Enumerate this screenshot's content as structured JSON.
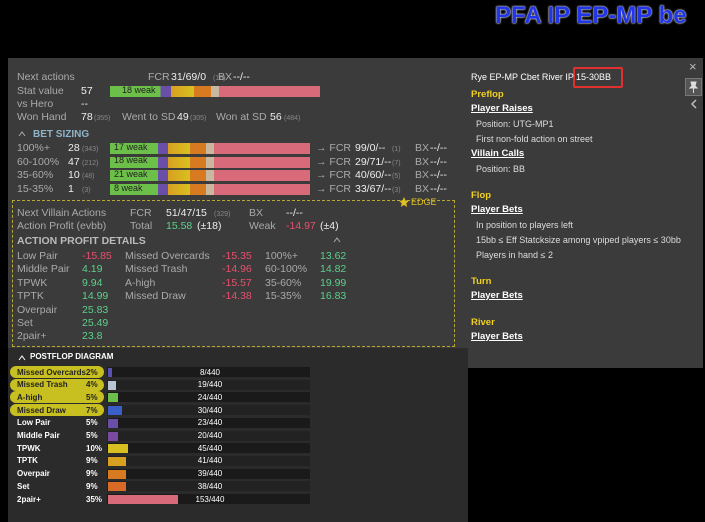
{
  "title": "PFA IP EP-MP be",
  "stats": {
    "next_actions": {
      "label": "Next actions",
      "fcr_label": "FCR",
      "fcr": "31/69/0",
      "fcr_n": "(16)",
      "bx_label": "BX",
      "bx": "--/--"
    },
    "stat_value": {
      "label": "Stat value",
      "value": 57,
      "bar_label": "18 weak"
    },
    "vs_hero": {
      "label": "vs Hero",
      "value": "--"
    },
    "won_hand": {
      "label": "Won Hand",
      "value": 78,
      "n": "(355)",
      "went_label": "Went to SD",
      "went": 49,
      "went_n": "(305)",
      "wsd_label": "Won at SD",
      "wsd": 56,
      "wsd_n": "(484)"
    }
  },
  "bet_sizing": {
    "title": "BET SIZING",
    "rows": [
      {
        "size": "100%+",
        "value": 28,
        "n": "(343)",
        "bar_label": "17 weak",
        "fcr_label": "→ FCR",
        "fcr": "99/0/--",
        "fcr_n": "(1)",
        "bx_label": "BX",
        "bx": "--/--"
      },
      {
        "size": "60-100%",
        "value": 47,
        "n": "(212)",
        "bar_label": "18 weak",
        "fcr_label": "→ FCR",
        "fcr": "29/71/--",
        "fcr_n": "(7)",
        "bx_label": "BX",
        "bx": "--/--"
      },
      {
        "size": "35-60%",
        "value": 10,
        "n": "(48)",
        "bar_label": "21 weak",
        "fcr_label": "→ FCR",
        "fcr": "40/60/--",
        "fcr_n": "(5)",
        "bx_label": "BX",
        "bx": "--/--"
      },
      {
        "size": "15-35%",
        "value": 1,
        "n": "(3)",
        "bar_label": "8 weak",
        "fcr_label": "→ FCR",
        "fcr": "33/67/--",
        "fcr_n": "(3)",
        "bx_label": "BX",
        "bx": "--/--"
      }
    ]
  },
  "edge": {
    "label": "EDGE",
    "next_villain": {
      "label": "Next Villain Actions",
      "fcr_label": "FCR",
      "fcr": "51/47/15",
      "fcr_n": "(329)",
      "bx_label": "BX",
      "bx": "--/--"
    },
    "action_profit": {
      "label": "Action Profit (evbb)",
      "total_label": "Total",
      "total": 15.58,
      "total_err": "(±18)",
      "weak_label": "Weak",
      "weak": -14.97,
      "weak_err": "(±4)"
    },
    "details_title": "ACTION PROFIT DETAILS",
    "columns": [
      [
        [
          "Low Pair",
          -15.85
        ],
        [
          "Middle Pair",
          4.19
        ],
        [
          "TPWK",
          9.94
        ],
        [
          "TPTK",
          14.99
        ],
        [
          "Overpair",
          25.83
        ],
        [
          "Set",
          25.49
        ],
        [
          "2pair+",
          23.8
        ]
      ],
      [
        [
          "Missed Overcards",
          -15.35
        ],
        [
          "Missed Trash",
          -14.96
        ],
        [
          "A-high",
          -15.57
        ],
        [
          "Missed Draw",
          -14.38
        ]
      ],
      [
        [
          "100%+",
          13.62
        ],
        [
          "60-100%",
          14.82
        ],
        [
          "35-60%",
          19.99
        ],
        [
          "15-35%",
          16.83
        ]
      ]
    ]
  },
  "diagram": {
    "title": "POSTFLOP DIAGRAM",
    "labels": [
      "Missed Overcards",
      "Missed Trash",
      "A-high",
      "Missed Draw",
      "Low Pair",
      "Middle Pair",
      "TPWK",
      "TPTK",
      "Overpair",
      "Set",
      "2pair+"
    ],
    "values": [
      2,
      4,
      5,
      7,
      5,
      5,
      10,
      9,
      9,
      9,
      35
    ],
    "value_labels": [
      "2%",
      "4%",
      "5%",
      "7%",
      "5%",
      "5%",
      "10%",
      "9%",
      "9%",
      "9%",
      "35%"
    ],
    "counts": [
      "8/440",
      "19/440",
      "24/440",
      "30/440",
      "23/440",
      "20/440",
      "45/440",
      "41/440",
      "39/440",
      "38/440",
      "153/440"
    ],
    "colors": [
      "#5b4fb0",
      "#b8c4d4",
      "#6cc04a",
      "#3b5fc8",
      "#6a4fa8",
      "#7a4aa0",
      "#d8c020",
      "#d8a020",
      "#d87a20",
      "#d86a28",
      "#d86a7a"
    ]
  },
  "filter": {
    "heading": "Rye EP-MP Cbet River IP",
    "badge": "15-30BB",
    "sections": [
      {
        "title": "Preflop",
        "items": [
          {
            "head": "Player Raises",
            "lines": [
              "Position: UTG-MP1",
              "First non-fold action on street"
            ]
          },
          {
            "head": "Villain Calls",
            "lines": [
              "Position: BB"
            ]
          }
        ]
      },
      {
        "title": "Flop",
        "items": [
          {
            "head": "Player Bets",
            "lines": [
              "In position to players left",
              "15bb ≤ Eff Statcksize among vpiped players ≤ 30bb",
              "Players in hand ≤ 2"
            ]
          }
        ]
      },
      {
        "title": "Turn",
        "items": [
          {
            "head": "Player Bets",
            "lines": []
          }
        ]
      },
      {
        "title": "River",
        "items": [
          {
            "head": "Player Bets",
            "lines": []
          }
        ]
      }
    ]
  }
}
